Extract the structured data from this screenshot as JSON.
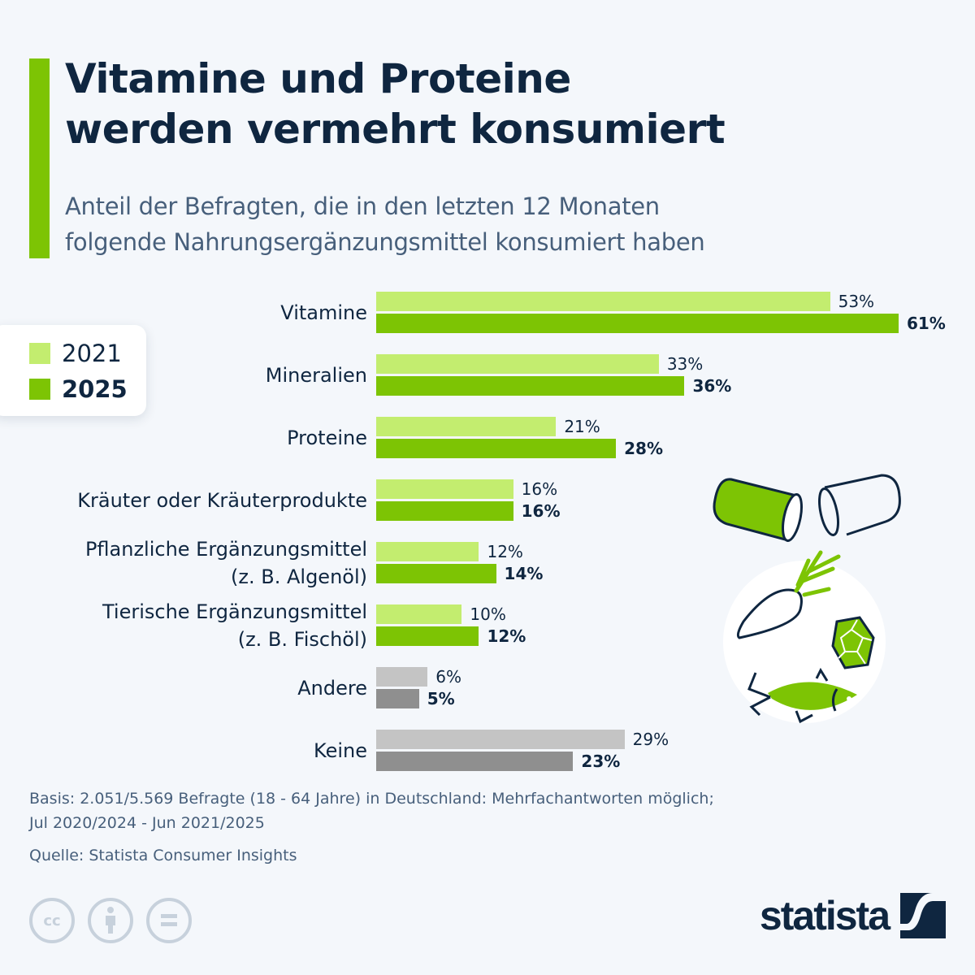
{
  "header": {
    "title_line1": "Vitamine und Proteine",
    "title_line2": "werden vermehrt konsumiert",
    "subtitle_line1": "Anteil der Befragten, die in den letzten 12 Monaten",
    "subtitle_line2": "folgende Nahrungsergänzungsmittel konsumiert haben"
  },
  "legend": {
    "items": [
      {
        "label": "2021",
        "color": "#c3ed6f"
      },
      {
        "label": "2025",
        "color": "#7dc404"
      }
    ]
  },
  "colors": {
    "accent": "#7dc404",
    "light_green": "#c3ed6f",
    "dark_green": "#7dc404",
    "light_gray": "#c4c4c4",
    "dark_gray": "#8f8f8f",
    "text": "#0f2640"
  },
  "chart_data": {
    "type": "bar",
    "orientation": "horizontal",
    "title": "Vitamine und Proteine werden vermehrt konsumiert",
    "subtitle": "Anteil der Befragten, die in den letzten 12 Monaten folgende Nahrungsergänzungsmittel konsumiert haben",
    "xlabel": "",
    "ylabel": "",
    "xlim": [
      0,
      61
    ],
    "grid": false,
    "legend_position": "left",
    "categories": [
      "Vitamine",
      "Mineralien",
      "Proteine",
      "Kräuter oder Kräuterprodukte",
      "Pflanzliche Ergänzungsmittel (z. B. Algenöl)",
      "Tierische Ergänzungsmittel (z. B. Fischöl)",
      "Andere",
      "Keine"
    ],
    "category_lines": [
      [
        "Vitamine"
      ],
      [
        "Mineralien"
      ],
      [
        "Proteine"
      ],
      [
        "Kräuter oder Kräuterprodukte"
      ],
      [
        "Pflanzliche Ergänzungsmittel",
        "(z. B. Algenöl)"
      ],
      [
        "Tierische Ergänzungsmittel",
        "(z. B. Fischöl)"
      ],
      [
        "Andere"
      ],
      [
        "Keine"
      ]
    ],
    "gray_categories": [
      "Andere",
      "Keine"
    ],
    "series": [
      {
        "name": "2021",
        "values": [
          53,
          33,
          21,
          16,
          12,
          10,
          6,
          29
        ]
      },
      {
        "name": "2025",
        "values": [
          61,
          36,
          28,
          16,
          14,
          12,
          5,
          23
        ]
      }
    ],
    "value_suffix": "%"
  },
  "footer": {
    "basis_line1": "Basis: 2.051/5.569 Befragte (18 - 64 Jahre) in Deutschland: Mehrfachantworten möglich;",
    "basis_line2": "Jul 2020/2024 - Jun 2021/2025",
    "source": "Quelle: Statista Consumer Insights",
    "license_icons": [
      "cc-icon",
      "attribution-icon",
      "no-derivatives-icon"
    ],
    "cc_label": "cc",
    "brand": "statista"
  }
}
